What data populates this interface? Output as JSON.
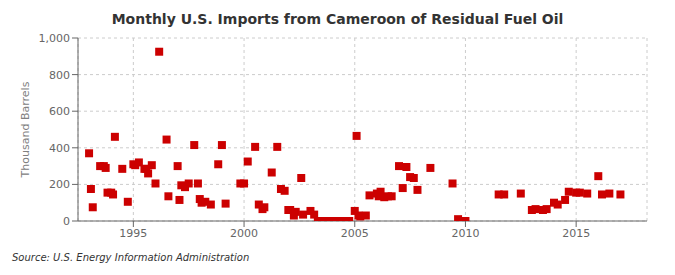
{
  "chart_data": {
    "type": "scatter",
    "title": "Monthly U.S. Imports from Cameroon of Residual Fuel Oil",
    "ylabel": "Thousand Barrels",
    "annotations": [
      "Source: U.S. Energy Information Administration"
    ],
    "color": "#cc0000",
    "marker": "square",
    "grid": true,
    "xlim": [
      1992.5,
      2018.2
    ],
    "ylim": [
      0,
      1000
    ],
    "yticks": [
      0,
      200,
      400,
      600,
      800,
      {
        "value": 1000,
        "label": "1,000"
      }
    ],
    "xticks": [
      1995,
      2000,
      2005,
      2010,
      2015
    ],
    "x": [
      1993,
      1993.0833333333333,
      1993.1666666666667,
      1993.5,
      1993.6666666666667,
      1993.75,
      1993.8333333333333,
      1994,
      1994.0833333333333,
      1994.1666666666667,
      1994.5,
      1994.75,
      1995,
      1995.0833333333333,
      1995.25,
      1995.5,
      1995.5833333333333,
      1995.6666666666667,
      1995.8333333333333,
      1996,
      1996.1666666666667,
      1996.5,
      1996.5833333333333,
      1997,
      1997.0833333333333,
      1997.1666666666667,
      1997.3333333333333,
      1997.5,
      1997.75,
      1997.9166666666667,
      1998,
      1998.0833333333333,
      1998.25,
      1998.5,
      1998.8333333333333,
      1999,
      1999.1666666666667,
      1999.8333333333333,
      2000,
      2000.1666666666667,
      2000.5,
      2000.6666666666667,
      2000.8333333333333,
      2000.9166666666667,
      2001.25,
      2001.5,
      2001.6666666666667,
      2001.8333333333333,
      2002,
      2002.0833333333333,
      2002.25,
      2002.3333333333333,
      2002.5833333333333,
      2002.6666666666667,
      2003,
      2003.1666666666667,
      2003.3333333333333,
      2003.5,
      2003.6666666666667,
      2004,
      2004.1666666666667,
      2004.3333333333333,
      2004.5833333333333,
      2004.75,
      2005,
      2005.0833333333333,
      2005.1666666666667,
      2005.25,
      2005.5,
      2005.6666666666667,
      2006,
      2006.0833333333333,
      2006.1666666666667,
      2006.3333333333333,
      2006.5,
      2006.6666666666667,
      2007,
      2007.1666666666667,
      2007.3333333333333,
      2007.5,
      2007.6666666666667,
      2007.8333333333333,
      2008.4166666666667,
      2009.4166666666667,
      2009.6666666666667,
      2010,
      2011.5,
      2011.75,
      2012.5,
      2013,
      2013.1666666666667,
      2013.5,
      2013.6666666666667,
      2014,
      2014.1666666666667,
      2014.5,
      2014.6666666666667,
      2015,
      2015.1666666666667,
      2015.5,
      2016,
      2016.1666666666667,
      2016.5,
      2017
    ],
    "values": [
      370,
      175,
      75,
      300,
      300,
      290,
      155,
      155,
      145,
      460,
      285,
      105,
      310,
      305,
      320,
      285,
      285,
      260,
      305,
      205,
      925,
      445,
      135,
      300,
      115,
      195,
      185,
      205,
      415,
      205,
      120,
      100,
      105,
      90,
      310,
      415,
      95,
      205,
      205,
      325,
      405,
      90,
      65,
      75,
      265,
      405,
      175,
      165,
      60,
      60,
      30,
      50,
      235,
      35,
      55,
      35,
      0,
      0,
      0,
      0,
      0,
      0,
      0,
      0,
      55,
      465,
      30,
      25,
      30,
      140,
      150,
      135,
      160,
      130,
      135,
      135,
      300,
      180,
      295,
      240,
      235,
      170,
      290,
      205,
      10,
      0,
      145,
      145,
      150,
      60,
      65,
      60,
      65,
      100,
      90,
      115,
      160,
      155,
      155,
      150,
      245,
      145,
      150,
      145
    ]
  }
}
